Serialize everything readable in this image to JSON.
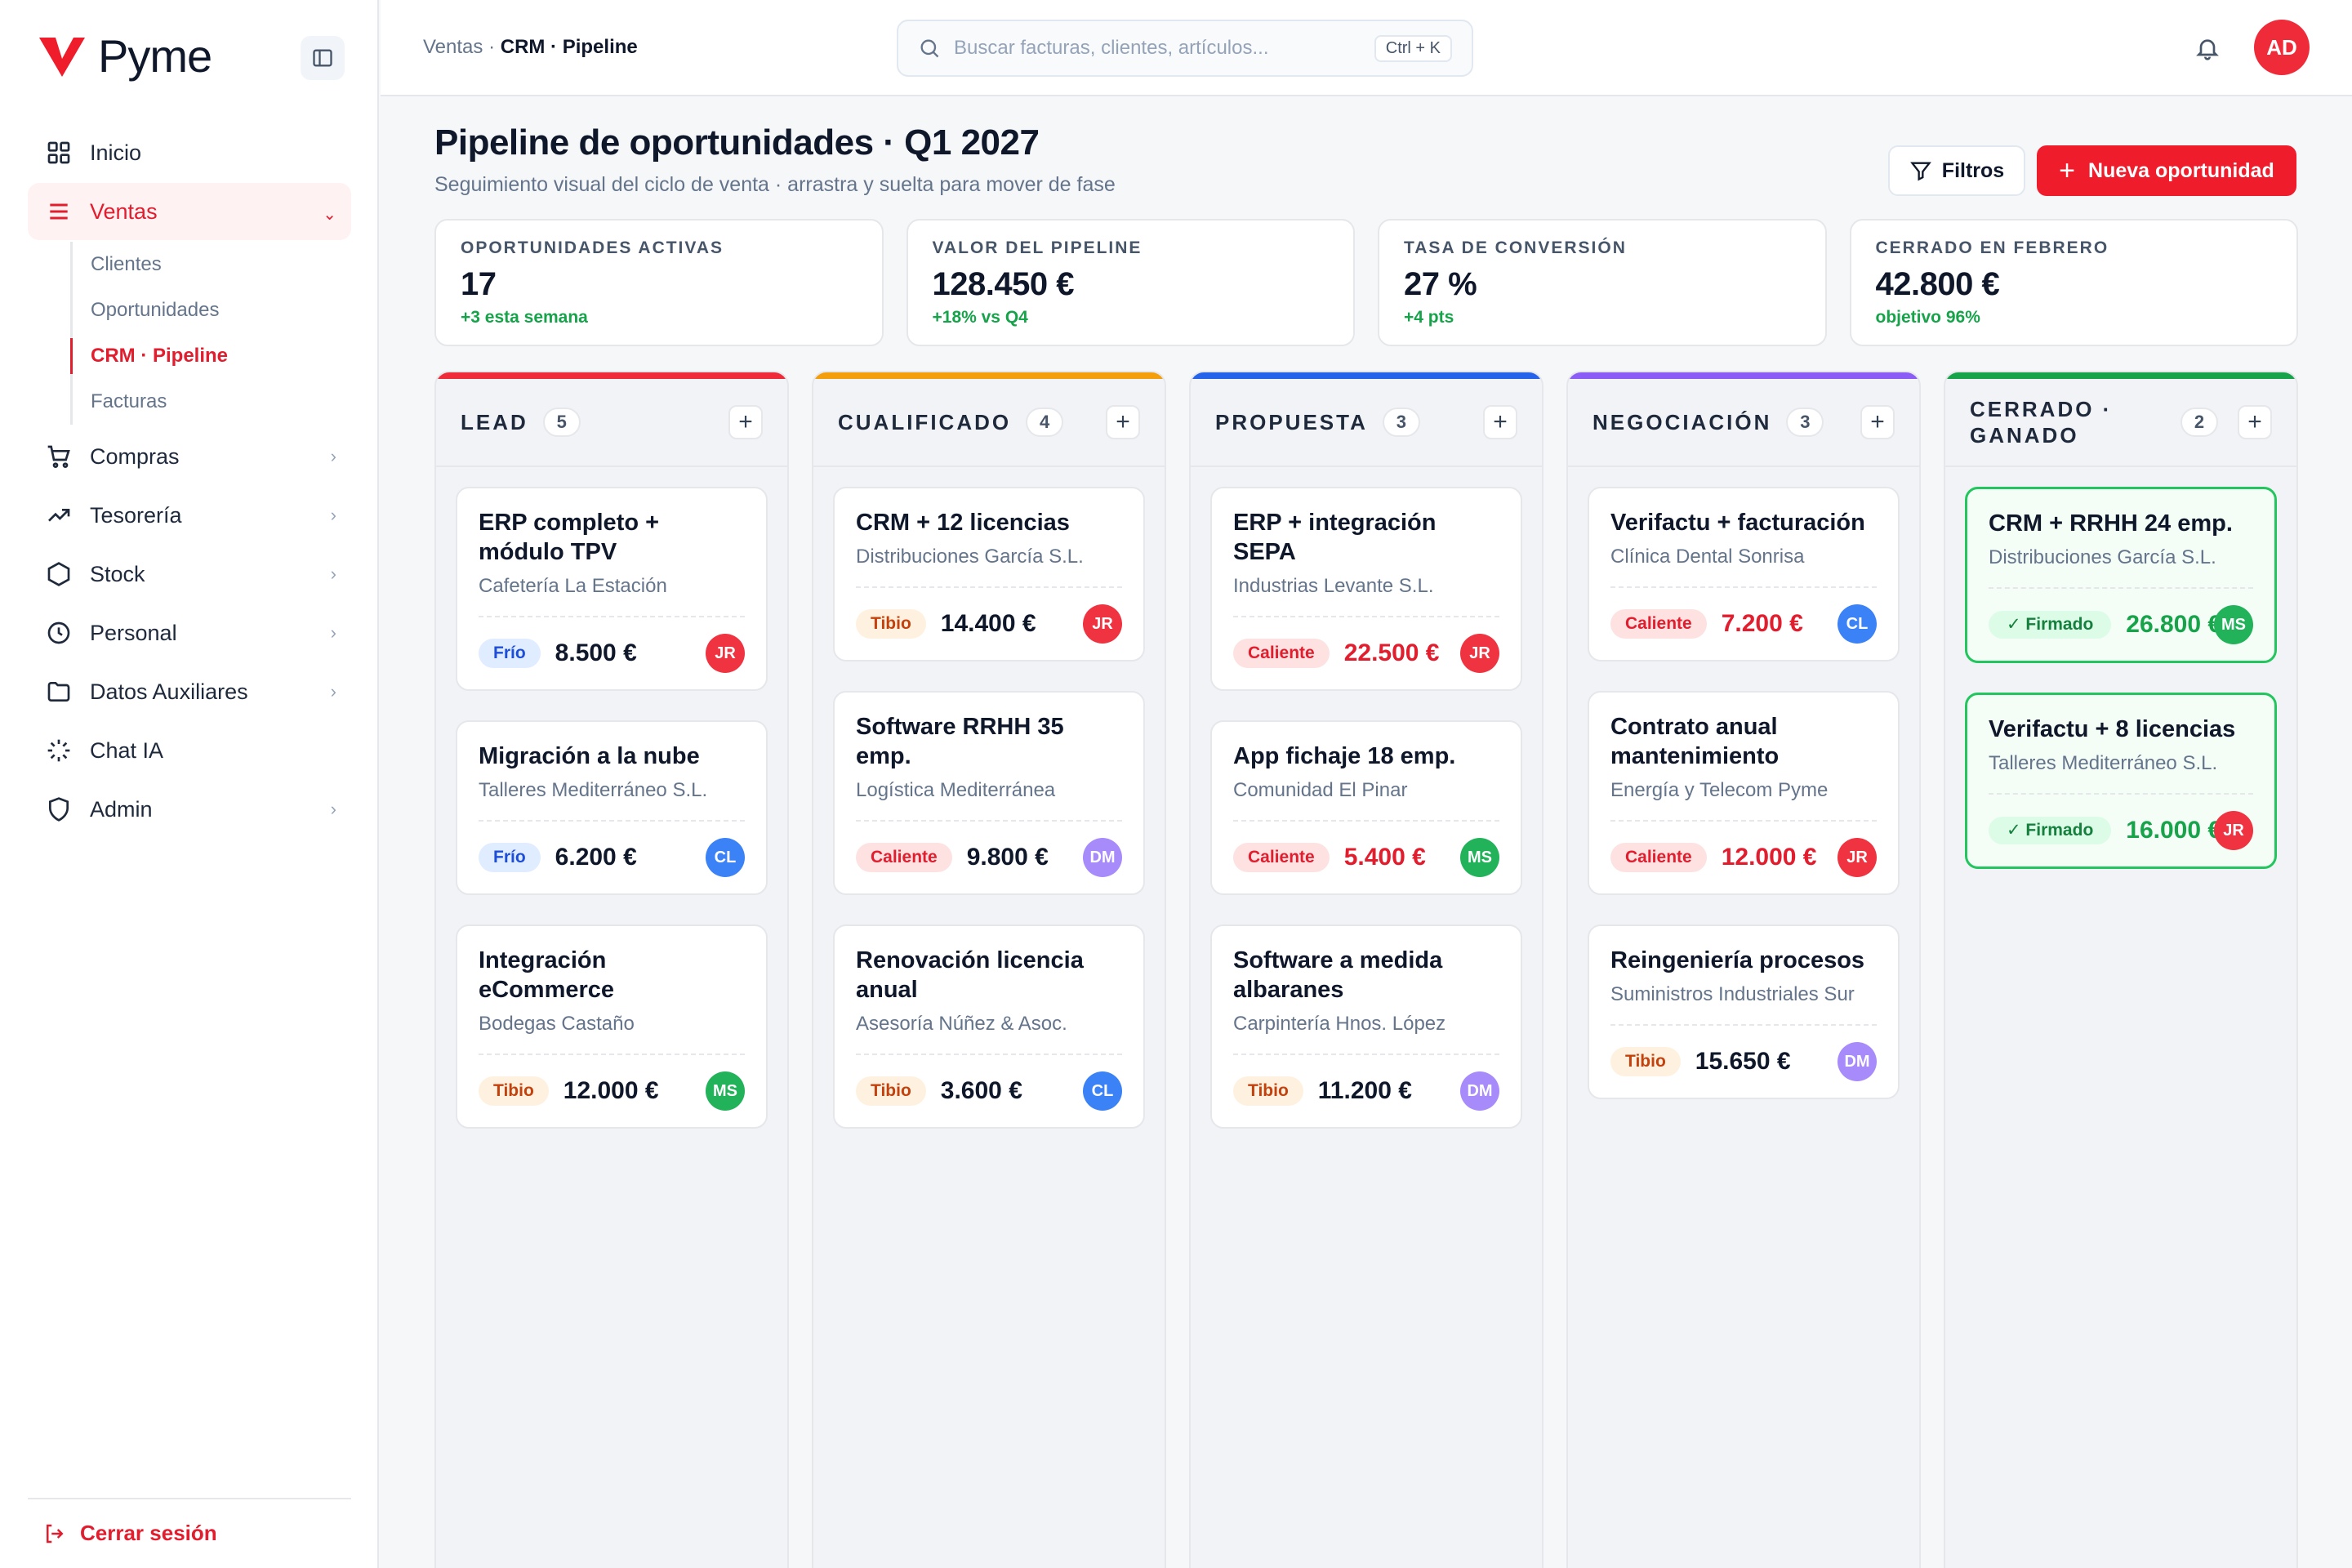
{
  "app": {
    "name": "Pyme"
  },
  "sidebar": {
    "items": [
      {
        "label": "Inicio",
        "icon": "grid-icon"
      },
      {
        "label": "Ventas",
        "icon": "menu-lines-icon",
        "active": true
      },
      {
        "label": "Compras",
        "icon": "cart-icon"
      },
      {
        "label": "Tesorería",
        "icon": "trend-icon"
      },
      {
        "label": "Stock",
        "icon": "hexagon-icon"
      },
      {
        "label": "Personal",
        "icon": "clock-icon"
      },
      {
        "label": "Datos Auxiliares",
        "icon": "folder-icon"
      },
      {
        "label": "Chat IA",
        "icon": "sparkle-icon"
      },
      {
        "label": "Admin",
        "icon": "shield-icon"
      }
    ],
    "ventas_sub": [
      "Clientes",
      "Oportunidades",
      "CRM · Pipeline",
      "Facturas"
    ],
    "logout": "Cerrar sesión"
  },
  "topbar": {
    "crumb_parent": "Ventas ·",
    "crumb_current": "CRM · Pipeline",
    "search_placeholder": "Buscar facturas, clientes, artículos...",
    "shortcut": "Ctrl + K",
    "user_initials": "AD"
  },
  "header": {
    "title": "Pipeline de oportunidades · Q1 2027",
    "subtitle": "Seguimiento visual del ciclo de venta · arrastra y suelta para mover de fase",
    "filter_label": "Filtros",
    "new_label": "Nueva oportunidad"
  },
  "kpis": [
    {
      "label": "OPORTUNIDADES ACTIVAS",
      "value": "17",
      "delta": "+3 esta semana"
    },
    {
      "label": "VALOR DEL PIPELINE",
      "value": "128.450 €",
      "delta": "+18% vs Q4"
    },
    {
      "label": "TASA DE CONVERSIÓN",
      "value": "27 %",
      "delta": "+4 pts"
    },
    {
      "label": "CERRADO EN FEBRERO",
      "value": "42.800 €",
      "delta": "objetivo 96%"
    }
  ],
  "columns": [
    {
      "title": "LEAD",
      "count": "5",
      "color": "#ef2b3a",
      "cards": [
        {
          "title": "ERP completo + módulo TPV",
          "client": "Cafetería La Estación",
          "tag": "Frío",
          "tag_type": "frio",
          "amount": "8.500 €",
          "owner": "JR"
        },
        {
          "title": "Migración a la nube",
          "client": "Talleres Mediterráneo S.L.",
          "tag": "Frío",
          "tag_type": "frio",
          "amount": "6.200 €",
          "owner": "CL"
        },
        {
          "title": "Integración eCommerce",
          "client": "Bodegas Castaño",
          "tag": "Tibio",
          "tag_type": "tibio",
          "amount": "12.000 €",
          "owner": "MS"
        }
      ]
    },
    {
      "title": "CUALIFICADO",
      "count": "4",
      "color": "#f59e0b",
      "cards": [
        {
          "title": "CRM + 12 licencias",
          "client": "Distribuciones García S.L.",
          "tag": "Tibio",
          "tag_type": "tibio",
          "amount": "14.400 €",
          "owner": "JR"
        },
        {
          "title": "Software RRHH 35 emp.",
          "client": "Logística Mediterránea",
          "tag": "Caliente",
          "tag_type": "caliente",
          "amount": "9.800 €",
          "owner": "DM"
        },
        {
          "title": "Renovación licencia anual",
          "client": "Asesoría Núñez & Asoc.",
          "tag": "Tibio",
          "tag_type": "tibio",
          "amount": "3.600 €",
          "owner": "CL"
        }
      ]
    },
    {
      "title": "PROPUESTA",
      "count": "3",
      "color": "#2563eb",
      "cards": [
        {
          "title": "ERP + integración SEPA",
          "client": "Industrias Levante S.L.",
          "tag": "Caliente",
          "tag_type": "caliente",
          "amount": "22.500 €",
          "owner": "JR",
          "red": true
        },
        {
          "title": "App fichaje 18 emp.",
          "client": "Comunidad El Pinar",
          "tag": "Caliente",
          "tag_type": "caliente",
          "amount": "5.400 €",
          "owner": "MS",
          "red": true
        },
        {
          "title": "Software a medida albaranes",
          "client": "Carpintería Hnos. López",
          "tag": "Tibio",
          "tag_type": "tibio",
          "amount": "11.200 €",
          "owner": "DM"
        }
      ]
    },
    {
      "title": "NEGOCIACIÓN",
      "count": "3",
      "color": "#8b5cf6",
      "cards": [
        {
          "title": "Verifactu + facturación",
          "client": "Clínica Dental Sonrisa",
          "tag": "Caliente",
          "tag_type": "caliente",
          "amount": "7.200 €",
          "owner": "CL",
          "red": true
        },
        {
          "title": "Contrato anual mantenimiento",
          "client": "Energía y Telecom Pyme",
          "tag": "Caliente",
          "tag_type": "caliente",
          "amount": "12.000 €",
          "owner": "JR",
          "red": true
        },
        {
          "title": "Reingeniería procesos",
          "client": "Suministros Industriales Sur",
          "tag": "Tibio",
          "tag_type": "tibio",
          "amount": "15.650 €",
          "owner": "DM"
        }
      ]
    },
    {
      "title": "CERRADO · GANADO",
      "count": "2",
      "color": "#16a34a",
      "won": true,
      "cards": [
        {
          "title": "CRM + RRHH 24 emp.",
          "client": "Distribuciones García S.L.",
          "tag": "✓ Firmado",
          "tag_type": "firmado",
          "amount": "26.800 €",
          "owner": "MS"
        },
        {
          "title": "Verifactu + 8 licencias",
          "client": "Talleres Mediterráneo S.L.",
          "tag": "✓ Firmado",
          "tag_type": "firmado",
          "amount": "16.000 €",
          "owner": "JR"
        }
      ]
    }
  ]
}
